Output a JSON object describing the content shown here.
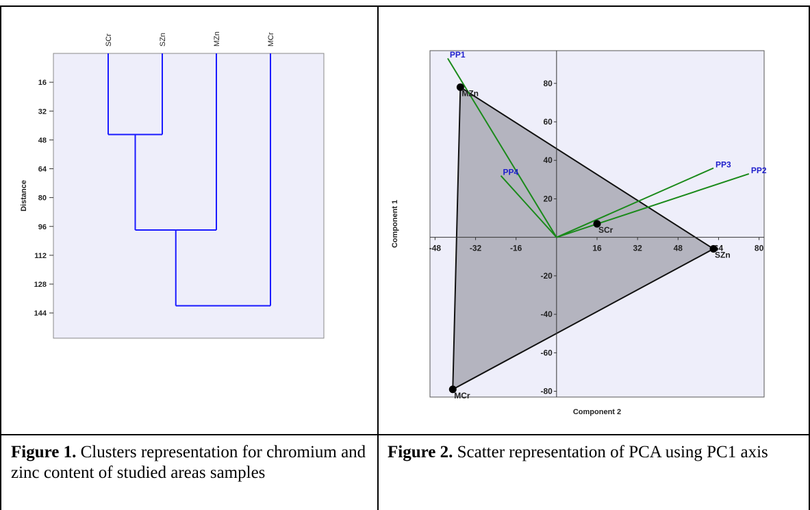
{
  "figure1": {
    "caption_label": "Figure 1.",
    "caption_text": " Clusters representation for chromium and zinc content of studied areas samples",
    "chart_data": {
      "type": "dendrogram",
      "ylabel": "Distance",
      "leaves": [
        "SCr",
        "SZn",
        "MZn",
        "MCr"
      ],
      "y_ticks": [
        16,
        32,
        48,
        64,
        80,
        96,
        112,
        128,
        144
      ],
      "ylim": [
        0,
        158
      ],
      "merges": [
        {
          "left": "SCr",
          "right": "SZn",
          "distance": 45
        },
        {
          "left": "SCr+SZn",
          "right": "MZn",
          "distance": 98
        },
        {
          "left": "SCr+SZn+MZn",
          "right": "MCr",
          "distance": 140
        }
      ],
      "colors": {
        "lines": "#1a1aff",
        "background": "#eeeefa"
      }
    }
  },
  "figure2": {
    "caption_label": "Figure 2.",
    "caption_text": " Scatter representation of PCA using PC1 axis",
    "chart_data": {
      "type": "scatter",
      "xlabel": "Component 2",
      "ylabel": "Component 1",
      "xlim": [
        -50,
        82
      ],
      "ylim": [
        -83,
        97
      ],
      "x_ticks": [
        "-48",
        "-32",
        "-16",
        "16",
        "32",
        "48",
        "64",
        "80"
      ],
      "y_ticks": [
        "80",
        "60",
        "40",
        "20",
        "-20",
        "-40",
        "-60",
        "-80"
      ],
      "points": [
        {
          "label": "MZn",
          "x": -38,
          "y": 78
        },
        {
          "label": "SCr",
          "x": 16,
          "y": 7
        },
        {
          "label": "SZn",
          "x": 62,
          "y": -6
        },
        {
          "label": "MCr",
          "x": -41,
          "y": -79
        }
      ],
      "hull": [
        "MZn",
        "SZn",
        "MCr"
      ],
      "vectors": [
        {
          "label": "PP1",
          "x": -43,
          "y": 93
        },
        {
          "label": "PP2",
          "x": 76,
          "y": 33
        },
        {
          "label": "PP3",
          "x": 62,
          "y": 36
        },
        {
          "label": "PP4",
          "x": -22,
          "y": 32
        }
      ],
      "colors": {
        "hull": "#b4b4bf",
        "vectors": "#1a8a1a",
        "vector_labels": "#1f1fcc",
        "background": "#eeeefa"
      }
    }
  }
}
